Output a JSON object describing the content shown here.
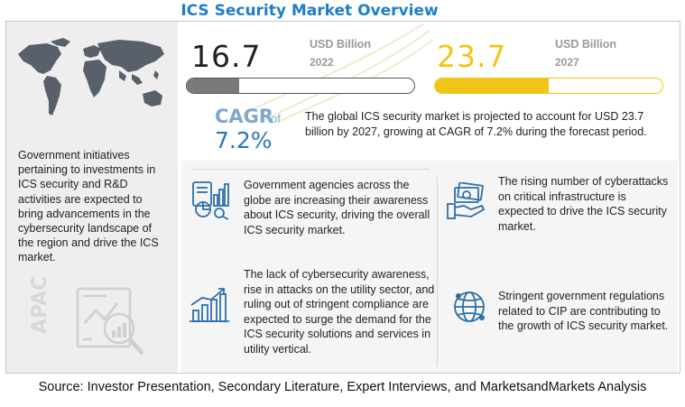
{
  "title": "ICS Security Market Overview",
  "region_label": "APAC",
  "left_text": "Government initiatives pertaining to investments in ICS security and R&D activities are expected to bring advancements in the cybersecurity landscape of the region and drive the ICS market.",
  "market_2022": {
    "value": "16.7",
    "unit": "USD Billion",
    "year": "2022",
    "bar_fill_fraction": 0.23
  },
  "market_2027": {
    "value": "23.7",
    "unit": "USD Billion",
    "year": "2027",
    "bar_fill_fraction": 0.5
  },
  "cagr": {
    "label": "CAGR",
    "of": "of",
    "value": "7.2%"
  },
  "summary": "The global ICS security market is projected to account for USD 23.7 billion by 2027, growing at CAGR of 7.2% during the forecast period.",
  "drivers": [
    {
      "icon": "analytics-report-icon",
      "text": "Government agencies across the globe are  increasing their awareness about ICS security, driving the overall ICS security market."
    },
    {
      "icon": "growth-chart-icon",
      "text": "The lack of cybersecurity awareness, rise in attacks on the utility sector, and ruling out of stringent compliance are expected to surge the demand for the ICS security solutions and services in utility vertical."
    },
    {
      "icon": "money-hand-icon",
      "text": "The rising number of cyberattacks on critical infrastructure is expected to drive the ICS security market."
    },
    {
      "icon": "globe-network-icon",
      "text": "Stringent government regulations related to CIP are contributing to the growth of ICS security market."
    }
  ],
  "source": "Source: Investor Presentation, Secondary Literature, Expert Interviews, and MarketsandMarkets Analysis",
  "colors": {
    "title": "#1f7fc6",
    "accent_yellow": "#f2c418",
    "cagr_blue": "#2878c0",
    "icon_blue": "#2e6fa8"
  }
}
